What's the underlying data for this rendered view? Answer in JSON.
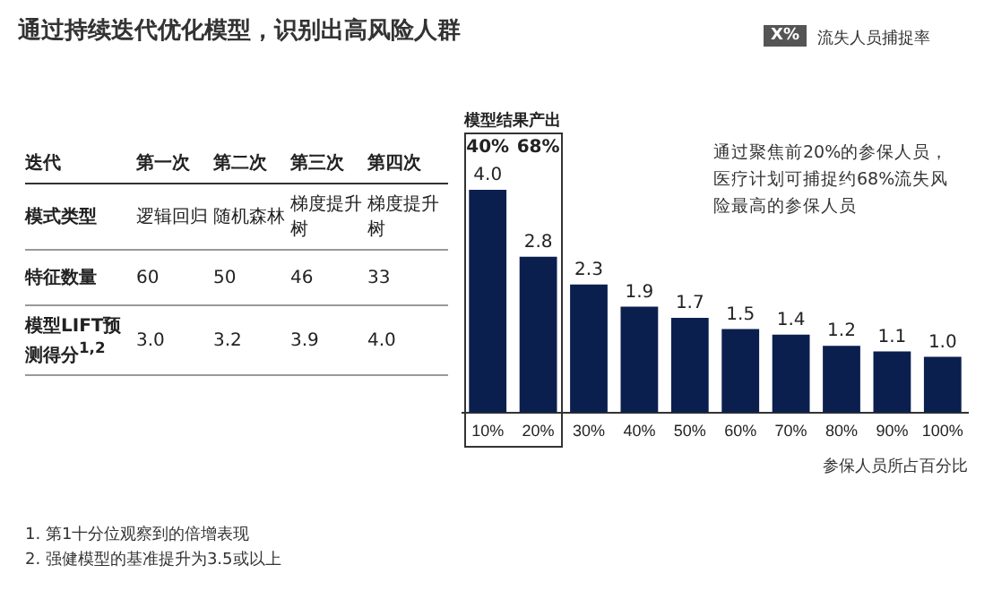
{
  "chart_data": [
    {
      "type": "bar",
      "title": "通过持续迭代优化模型，识别出高风险人群",
      "xlabel": "参保人员所占百分比",
      "categories": [
        "10%",
        "20%",
        "30%",
        "40%",
        "50%",
        "60%",
        "70%",
        "80%",
        "90%",
        "100%"
      ],
      "values": [
        4.0,
        2.8,
        2.3,
        1.9,
        1.7,
        1.5,
        1.4,
        1.2,
        1.1,
        1.0
      ],
      "color": "#0b1f4f",
      "value_labels": [
        "4.0",
        "2.8",
        "2.3",
        "1.9",
        "1.7",
        "1.5",
        "1.4",
        "1.2",
        "1.1",
        "1.0"
      ],
      "grid": false,
      "legend": false,
      "annotations": [
        "模型结果产出",
        "40%",
        "68%",
        "通过聚焦前20%的参保人员，医疗计划可捕捉约68%流失风险最高的参保人员",
        "X%",
        "流失人员捕捉率",
        "1. 第1十分位观察到的倍增表现",
        "2. 强健模型的基准提升为3.5或以上"
      ]
    },
    {
      "type": "other",
      "annotations": [
        "迭代",
        "第一次",
        "第二次",
        "第三次",
        "第四次",
        "模式类型",
        "逻辑回归",
        "随机森林",
        "梯度提升树",
        "梯度提升树",
        "特征数量",
        "60",
        "50",
        "46",
        "33",
        "模型LIFT预测得分$^{1,2}$",
        "3.0",
        "3.2",
        "3.9",
        "4.0"
      ]
    }
  ]
}
